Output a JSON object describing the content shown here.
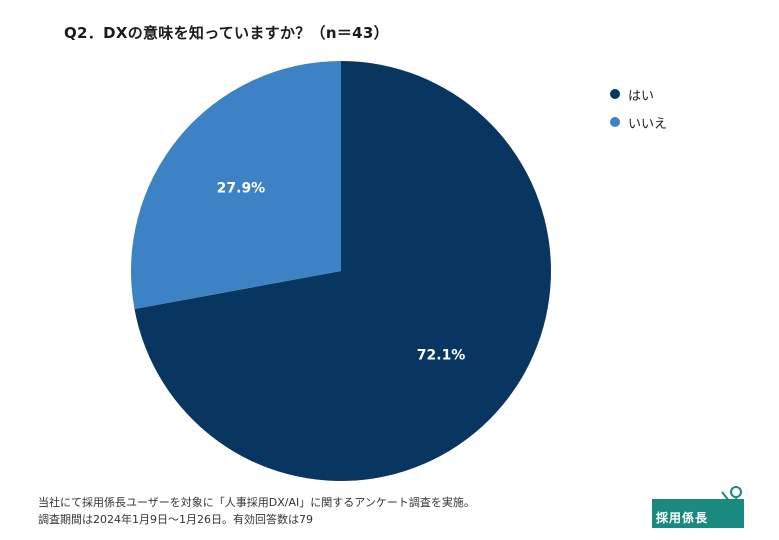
{
  "chart_data": {
    "type": "pie",
    "title": "Q2．DXの意味を知っていますか？（n＝43）",
    "slices": [
      {
        "label": "はい",
        "value": 72.1,
        "display": "72.1%",
        "color": "#093661"
      },
      {
        "label": "いいえ",
        "value": 27.9,
        "display": "27.9%",
        "color": "#3d82c4"
      }
    ],
    "legend_position": "top-right"
  },
  "footnote": {
    "line1": "当社にて採用係長ユーザーを対象に「人事採用DX/AI」に関するアンケート調査を実施。",
    "line2": "調査期間は2024年1月9日～1月26日。有効回答数は79"
  },
  "logo": {
    "text": "採用係長",
    "color": "#1a8a80"
  }
}
